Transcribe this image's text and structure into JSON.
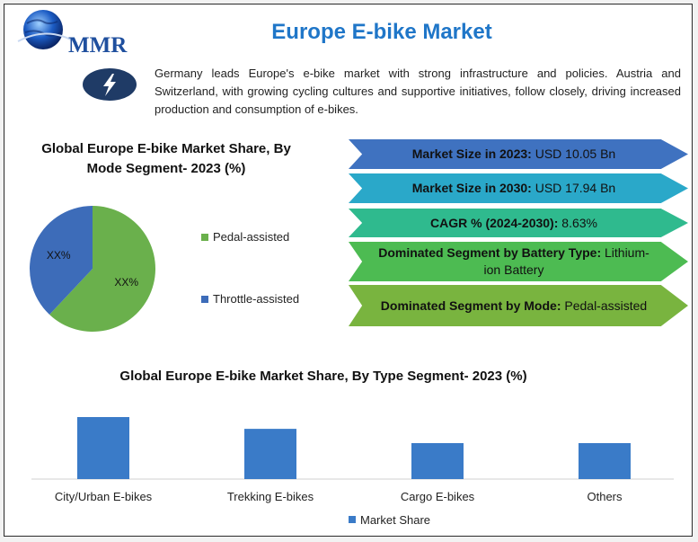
{
  "header": {
    "logo_text": "MMR",
    "title": "Europe E-bike Market",
    "intro": "Germany leads Europe's e-bike market with strong infrastructure and policies. Austria and Switzerland, with growing cycling cultures and supportive initiatives, follow closely, driving increased production and consumption of e-bikes."
  },
  "icons": {
    "logo": "globe-logo-icon",
    "badge": "lightning-bolt-icon"
  },
  "stats": [
    {
      "label": "Market Size in 2023:",
      "value": " USD 10.05 Bn",
      "color": "#3f72c0"
    },
    {
      "label": "Market Size in 2030:",
      "value": " USD 17.94 Bn",
      "color": "#2aa8c9"
    },
    {
      "label": "CAGR % (2024-2030):",
      "value": " 8.63%",
      "color": "#2fba8e"
    },
    {
      "label": "Dominated Segment by Battery Type:",
      "value": " Lithium-ion Battery",
      "color": "#4dbb52"
    },
    {
      "label": "Dominated Segment by Mode:",
      "value": " Pedal-assisted",
      "color": "#79b43f"
    }
  ],
  "chart_data": [
    {
      "type": "pie",
      "title": "Global Europe E-bike Market Share, By Mode Segment- 2023 (%)",
      "categories": [
        "Pedal-assisted",
        "Throttle-assisted"
      ],
      "values": [
        62,
        38
      ],
      "data_labels": [
        "XX%",
        "XX%"
      ],
      "colors": [
        "#6ab04c",
        "#3d6cb9"
      ],
      "legend": "right"
    },
    {
      "type": "bar",
      "title": "Global Europe E-bike Market Share, By Type Segment- 2023 (%)",
      "categories": [
        "City/Urban E-bikes",
        "Trekking E-bikes",
        "Cargo E-bikes",
        "Others"
      ],
      "series": [
        {
          "name": "Market Share",
          "values": [
            100,
            81,
            58,
            58
          ],
          "color": "#3a7bc8"
        }
      ],
      "ylim": [
        0,
        100
      ],
      "grid": false,
      "legend": "bottom"
    }
  ]
}
